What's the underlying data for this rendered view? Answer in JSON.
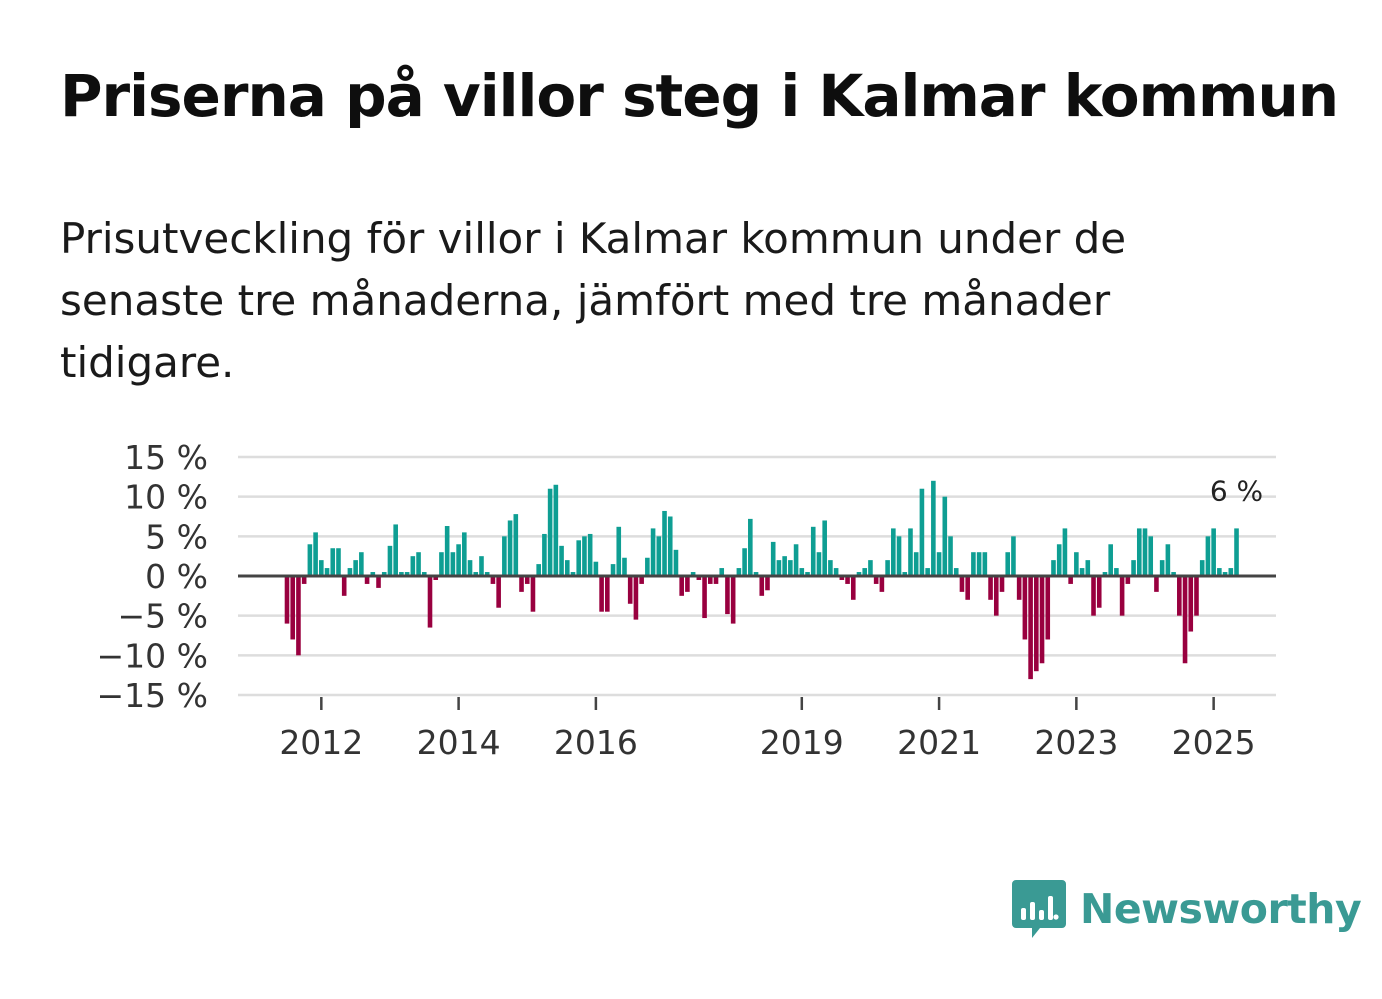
{
  "title": "Priserna på villor steg i Kalmar kommun",
  "subtitle": "Prisutveckling för villor i Kalmar kommun under de senaste tre månaderna, jämfört med tre månader tidigare.",
  "brand": {
    "name": "Newsworthy",
    "color": "#3a9a94",
    "icon": "newsworthy-logo-icon"
  },
  "colors": {
    "positive": "#0e9e93",
    "negative": "#99003f",
    "grid": "#dddddd",
    "zero_line": "#444444"
  },
  "chart_data": {
    "type": "bar",
    "title": "Priserna på villor steg i Kalmar kommun",
    "xlabel": "",
    "ylabel": "",
    "ylim": [
      -15,
      15
    ],
    "yticks": [
      {
        "value": 15,
        "label": "15 %"
      },
      {
        "value": 10,
        "label": "10 %"
      },
      {
        "value": 5,
        "label": "5 %"
      },
      {
        "value": 0,
        "label": "0 %"
      },
      {
        "value": -5,
        "label": "−5 %"
      },
      {
        "value": -10,
        "label": "−10 %"
      },
      {
        "value": -15,
        "label": "−15 %"
      }
    ],
    "xticks": [
      {
        "year": 2012,
        "label": "2012"
      },
      {
        "year": 2014,
        "label": "2014"
      },
      {
        "year": 2016,
        "label": "2016"
      },
      {
        "year": 2019,
        "label": "2019"
      },
      {
        "year": 2021,
        "label": "2021"
      },
      {
        "year": 2023,
        "label": "2023"
      },
      {
        "year": 2025,
        "label": "2025"
      }
    ],
    "start": {
      "year": 2011,
      "month": 7
    },
    "last_value_label": "6 %",
    "series": [
      {
        "name": "Prisutveckling",
        "values": [
          -6,
          -8,
          -10,
          -1,
          4,
          5.5,
          2,
          1,
          3.5,
          3.5,
          -2.5,
          1,
          2,
          3,
          -1,
          0.5,
          -1.5,
          0.5,
          3.8,
          6.5,
          0.5,
          0.5,
          2.5,
          3,
          0.5,
          -6.5,
          -0.5,
          3,
          6.3,
          3,
          4,
          5.5,
          2,
          0.5,
          2.5,
          0.5,
          -1,
          -4,
          5,
          7,
          7.8,
          -2,
          -1,
          -4.5,
          1.5,
          5.3,
          11,
          11.5,
          3.8,
          2,
          0.5,
          4.5,
          5,
          5.3,
          1.8,
          -4.5,
          -4.5,
          1.5,
          6.2,
          2.3,
          -3.5,
          -5.5,
          -1,
          2.3,
          6,
          5,
          8.2,
          7.5,
          3.3,
          -2.5,
          -2,
          0.5,
          -0.5,
          -5.3,
          -1,
          -1,
          1,
          -4.8,
          -6,
          1,
          3.5,
          7.2,
          0.5,
          -2.5,
          -1.8,
          4.3,
          2,
          2.5,
          2,
          4,
          1,
          0.5,
          6.2,
          3,
          7,
          2,
          1,
          -0.5,
          -1,
          -3,
          0.5,
          1,
          2,
          -1,
          -2,
          2,
          6,
          5,
          0.5,
          6,
          3,
          11,
          1,
          12,
          3,
          10,
          5,
          1,
          -2,
          -3,
          3,
          3,
          3,
          -3,
          -5,
          -2,
          3,
          5,
          -3,
          -8,
          -13,
          -12,
          -11,
          -8,
          2,
          4,
          6,
          -1,
          3,
          1,
          2,
          -5,
          -4,
          0.5,
          4,
          1,
          -5,
          -1,
          2,
          6,
          6,
          5,
          -2,
          2,
          4,
          0.5,
          -5,
          -11,
          -7,
          -5,
          2,
          5,
          6,
          1,
          0.5,
          1,
          6
        ]
      }
    ]
  }
}
